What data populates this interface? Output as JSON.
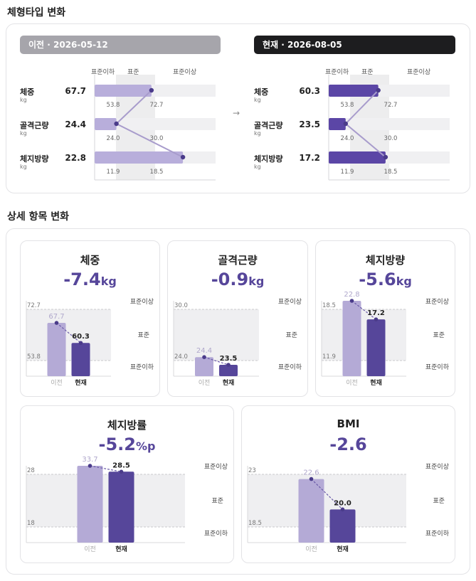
{
  "bodytype": {
    "title": "체형타입 변화",
    "before_label": "이전 · 2026-05-12",
    "now_label": "현재 · 2026-08-05",
    "arrow": "→",
    "axis": {
      "below": "표준이하",
      "standard": "표준",
      "above": "표준이상"
    },
    "metrics": [
      {
        "label": "체중",
        "unit": "kg",
        "before": "67.7",
        "now": "60.3",
        "low": "53.8",
        "high": "72.7",
        "before_fill": 0.47,
        "now_fill": 0.41
      },
      {
        "label": "골격근량",
        "unit": "kg",
        "before": "24.4",
        "now": "23.5",
        "low": "24.0",
        "high": "30.0",
        "before_fill": 0.18,
        "now_fill": 0.14
      },
      {
        "label": "체지방량",
        "unit": "kg",
        "before": "22.8",
        "now": "17.2",
        "low": "11.9",
        "high": "18.5",
        "before_fill": 0.73,
        "now_fill": 0.47
      }
    ]
  },
  "detail": {
    "title": "상세 항목 변화",
    "labels": {
      "before": "이전",
      "now": "현재",
      "above": "표준이상",
      "standard": "표준",
      "below": "표준이하"
    },
    "cards": [
      {
        "title": "체중",
        "delta": "-7.4",
        "unit": "kg",
        "before": 67.7,
        "now": 60.3,
        "low": 53.8,
        "high": 72.7,
        "low_label": "53.8",
        "high_label": "72.7",
        "before_label": "67.7",
        "now_label": "60.3"
      },
      {
        "title": "골격근량",
        "delta": "-0.9",
        "unit": "kg",
        "before": 24.4,
        "now": 23.5,
        "low": 24.0,
        "high": 30.0,
        "low_label": "24.0",
        "high_label": "30.0",
        "before_label": "24.4",
        "now_label": "23.5"
      },
      {
        "title": "체지방량",
        "delta": "-5.6",
        "unit": "kg",
        "before": 22.8,
        "now": 17.2,
        "low": 11.9,
        "high": 18.5,
        "low_label": "11.9",
        "high_label": "18.5",
        "before_label": "22.8",
        "now_label": "17.2"
      },
      {
        "title": "체지방률",
        "delta": "-5.2",
        "unit": "%p",
        "before": 33.7,
        "now": 28.5,
        "low": 18,
        "high": 28,
        "low_label": "18",
        "high_label": "28",
        "before_label": "33.7",
        "now_label": "28.5"
      },
      {
        "title": "BMI",
        "delta": "-2.6",
        "unit": "",
        "before": 22.6,
        "now": 20.0,
        "low": 18.5,
        "high": 23,
        "low_label": "18.5",
        "high_label": "23",
        "before_label": "22.6",
        "now_label": "20.0"
      }
    ]
  },
  "colors": {
    "before": "#b4aad6",
    "now": "#56469a",
    "band": "#efeff1",
    "line": "#a89ccc"
  }
}
